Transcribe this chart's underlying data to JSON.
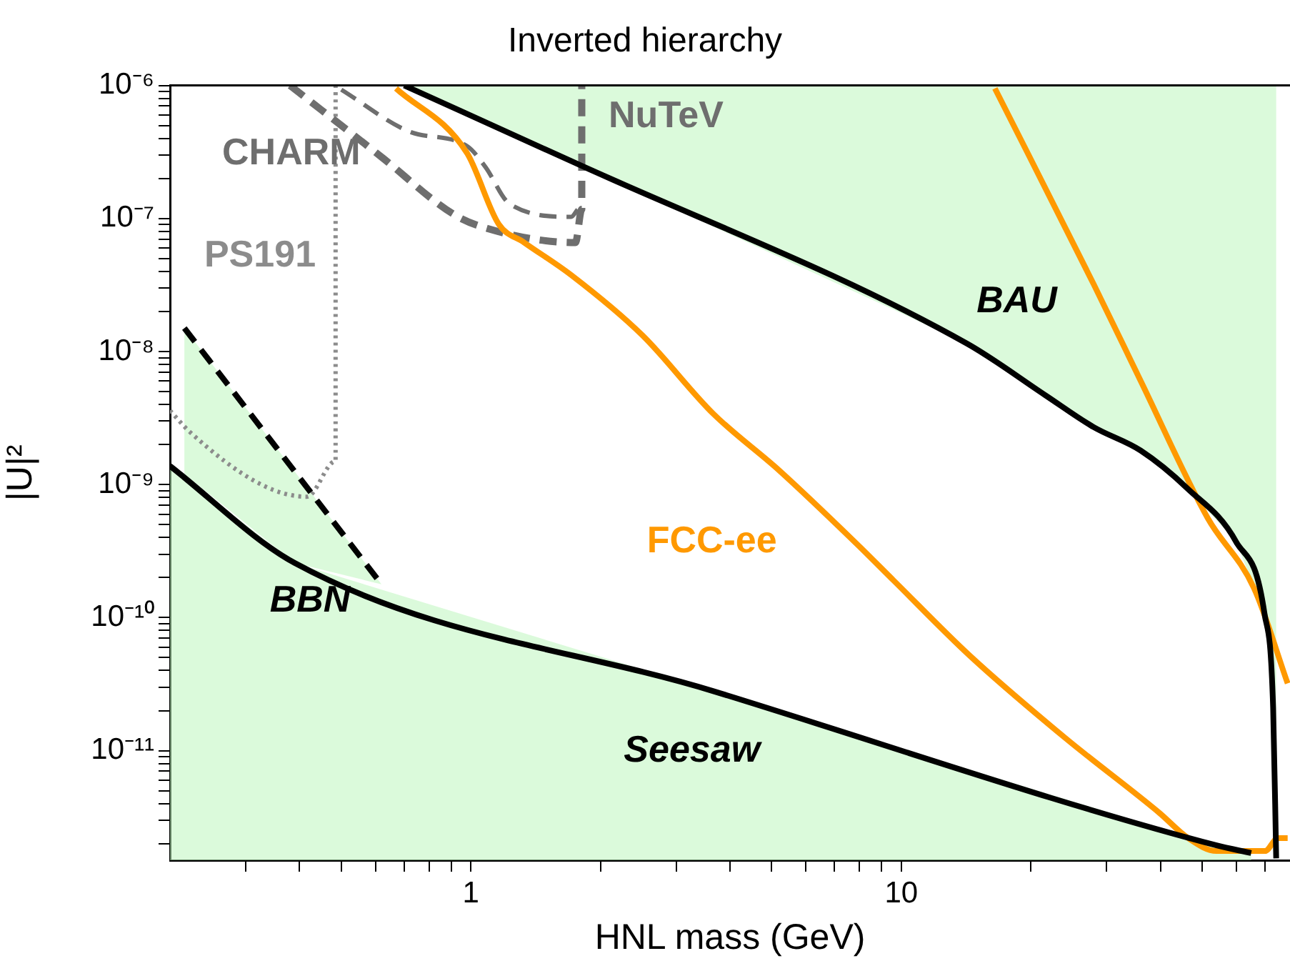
{
  "chart_data": {
    "type": "line",
    "title": "Inverted hierarchy",
    "xlabel": "HNL mass (GeV)",
    "ylabel": "|U|²",
    "log": "xy",
    "marker": "none",
    "xlim": [
      0.2,
      80
    ],
    "ylim": [
      1.5e-12,
      1e-06
    ],
    "xticks": [
      {
        "value": 0.3,
        "label": null
      },
      {
        "value": 0.4,
        "label": null
      },
      {
        "value": 0.5,
        "label": null
      },
      {
        "value": 0.6,
        "label": null
      },
      {
        "value": 0.7,
        "label": null
      },
      {
        "value": 0.8,
        "label": null
      },
      {
        "value": 0.9,
        "label": null
      },
      1,
      {
        "value": 2,
        "label": null
      },
      {
        "value": 3,
        "label": null
      },
      {
        "value": 4,
        "label": null
      },
      {
        "value": 5,
        "label": null
      },
      {
        "value": 6,
        "label": null
      },
      {
        "value": 7,
        "label": null
      },
      {
        "value": 8,
        "label": null
      },
      {
        "value": 9,
        "label": null
      },
      10,
      {
        "value": 20,
        "label": null
      },
      {
        "value": 30,
        "label": null
      },
      {
        "value": 40,
        "label": null
      },
      {
        "value": 50,
        "label": null
      },
      {
        "value": 60,
        "label": null
      },
      {
        "value": 70,
        "label": null
      }
    ],
    "yticks": [
      {
        "value": 2e-12,
        "label": null
      },
      {
        "value": 3e-12,
        "label": null
      },
      {
        "value": 4e-12,
        "label": null
      },
      {
        "value": 5e-12,
        "label": null
      },
      {
        "value": 6e-12,
        "label": null
      },
      {
        "value": 7e-12,
        "label": null
      },
      {
        "value": 8e-12,
        "label": null
      },
      {
        "value": 9e-12,
        "label": null
      },
      {
        "value": 1e-11,
        "label": "10⁻¹¹"
      },
      {
        "value": 2e-11,
        "label": null
      },
      {
        "value": 3e-11,
        "label": null
      },
      {
        "value": 4e-11,
        "label": null
      },
      {
        "value": 5e-11,
        "label": null
      },
      {
        "value": 6e-11,
        "label": null
      },
      {
        "value": 7e-11,
        "label": null
      },
      {
        "value": 8e-11,
        "label": null
      },
      {
        "value": 9e-11,
        "label": null
      },
      {
        "value": 1e-10,
        "label": "10⁻¹⁰"
      },
      {
        "value": 2e-10,
        "label": null
      },
      {
        "value": 3e-10,
        "label": null
      },
      {
        "value": 4e-10,
        "label": null
      },
      {
        "value": 5e-10,
        "label": null
      },
      {
        "value": 6e-10,
        "label": null
      },
      {
        "value": 7e-10,
        "label": null
      },
      {
        "value": 8e-10,
        "label": null
      },
      {
        "value": 9e-10,
        "label": null
      },
      {
        "value": 1e-09,
        "label": "10⁻⁹"
      },
      {
        "value": 2e-09,
        "label": null
      },
      {
        "value": 3e-09,
        "label": null
      },
      {
        "value": 4e-09,
        "label": null
      },
      {
        "value": 5e-09,
        "label": null
      },
      {
        "value": 6e-09,
        "label": null
      },
      {
        "value": 7e-09,
        "label": null
      },
      {
        "value": 8e-09,
        "label": null
      },
      {
        "value": 9e-09,
        "label": null
      },
      {
        "value": 1e-08,
        "label": "10⁻⁸"
      },
      {
        "value": 2e-08,
        "label": null
      },
      {
        "value": 3e-08,
        "label": null
      },
      {
        "value": 4e-08,
        "label": null
      },
      {
        "value": 5e-08,
        "label": null
      },
      {
        "value": 6e-08,
        "label": null
      },
      {
        "value": 7e-08,
        "label": null
      },
      {
        "value": 8e-08,
        "label": null
      },
      {
        "value": 9e-08,
        "label": null
      },
      {
        "value": 1e-07,
        "label": "10⁻⁷"
      },
      {
        "value": 2e-07,
        "label": null
      },
      {
        "value": 3e-07,
        "label": null
      },
      {
        "value": 4e-07,
        "label": null
      },
      {
        "value": 5e-07,
        "label": null
      },
      {
        "value": 6e-07,
        "label": null
      },
      {
        "value": 7e-07,
        "label": null
      },
      {
        "value": 8e-07,
        "label": null
      },
      {
        "value": 9e-07,
        "label": null
      },
      {
        "value": 1e-06,
        "label": "10⁻⁶"
      }
    ],
    "series": [
      {
        "name": "BAU",
        "color": "#000000",
        "line_style": "solid",
        "x": [
          0.7,
          1.71,
          14.2,
          21.6,
          28,
          36,
          46.3,
          60,
          69.8,
          73.1,
          74.3
        ],
        "values": [
          1e-06,
          2.7e-07,
          1.15e-08,
          4.7e-09,
          2.7e-09,
          1.8e-09,
          9.3e-10,
          3.7e-10,
          1.07e-10,
          2.1e-11,
          1.55e-12
        ],
        "lower": [
          1e-06,
          2.7e-07,
          1.15e-08,
          4.7e-09,
          2.7e-09,
          1.8e-09,
          9.3e-10,
          3.7e-10,
          1.07e-10,
          2.1e-11,
          1.55e-12
        ],
        "upper": [
          1e-06,
          1e-06,
          1e-06,
          1e-06,
          1e-06,
          1e-06,
          1e-06,
          1e-06,
          1e-06,
          1e-06,
          1e-06
        ]
      },
      {
        "name": "Seesaw",
        "color": "#000000",
        "line_style": "solid",
        "x": [
          0.2,
          0.39,
          3.66,
          54,
          65
        ],
        "values": [
          1.38e-09,
          2.57e-10,
          2.8e-11,
          1.94e-12,
          1.7e-12
        ],
        "lower": [
          1.5e-12,
          1.5e-12,
          1.5e-12,
          1.5e-12,
          1.5e-12
        ],
        "upper": [
          1.38e-09,
          2.57e-10,
          2.8e-11,
          1.94e-12,
          1.7e-12
        ]
      },
      {
        "name": "BBN",
        "color": "#000000",
        "line_style": "dashed",
        "x": [
          0.216,
          0.39,
          0.62
        ],
        "values": [
          1.5e-08,
          1.25e-09,
          1.78e-10
        ],
        "lower": [
          1.2e-09,
          2.57e-10,
          1.78e-10
        ],
        "upper": [
          1.5e-08,
          1.25e-09,
          1.78e-10
        ]
      },
      {
        "name": "FCC-ee",
        "color": "#ff9900",
        "line_style": "solid",
        "x": [
          0.67,
          0.98,
          1.16,
          1.33,
          1.71,
          2.5,
          3.66,
          5.2,
          7.8,
          9.6,
          14.4,
          24,
          39.8,
          46.4,
          54,
          70,
          75,
          79
        ],
        "values": [
          9.5e-07,
          3.1e-07,
          9.1e-08,
          6.6e-08,
          3.76e-08,
          1.33e-08,
          3.4e-09,
          1.28e-09,
          3.7e-10,
          1.9e-10,
          5.2e-11,
          1.25e-11,
          3.4e-12,
          2.2e-12,
          1.76e-12,
          1.76e-12,
          2.2e-12,
          2.2e-12
        ]
      },
      {
        "name": "CHARM",
        "color": "#6e6e6e",
        "line_style": "dashed",
        "x": [
          0.5,
          0.72,
          0.98,
          1.08,
          1.23,
          1.71,
          1.77
        ],
        "values": [
          9.3e-07,
          4.5e-07,
          3.5e-07,
          2.45e-07,
          1.29e-07,
          1.03e-07,
          1.17e-07
        ]
      },
      {
        "name": "NuTeV",
        "color": "#6e6e6e",
        "line_style": "dashed",
        "x": [
          0.38,
          0.62,
          0.91,
          1.08,
          1.75,
          1.81,
          1.81
        ],
        "values": [
          1e-06,
          2.9e-07,
          1.08e-07,
          8.5e-08,
          6.6e-08,
          1.17e-07,
          1e-06
        ]
      },
      {
        "name": "PS191",
        "color": "#8c8c8c",
        "line_style": "dotted",
        "x": [
          0.2,
          0.222,
          0.326,
          0.416,
          0.485,
          0.485
        ],
        "values": [
          3.6e-09,
          2.5e-09,
          1e-09,
          8.1e-10,
          1.5e-09,
          1e-06
        ]
      },
      {
        "color": "#ff9900",
        "line_style": "solid",
        "x": [
          16.5,
          28,
          36,
          51.5,
          66,
          79
        ],
        "values": [
          9.5e-07,
          3.2e-08,
          6e-09,
          5.6e-10,
          1.66e-10,
          3.2e-11
        ]
      }
    ]
  }
}
